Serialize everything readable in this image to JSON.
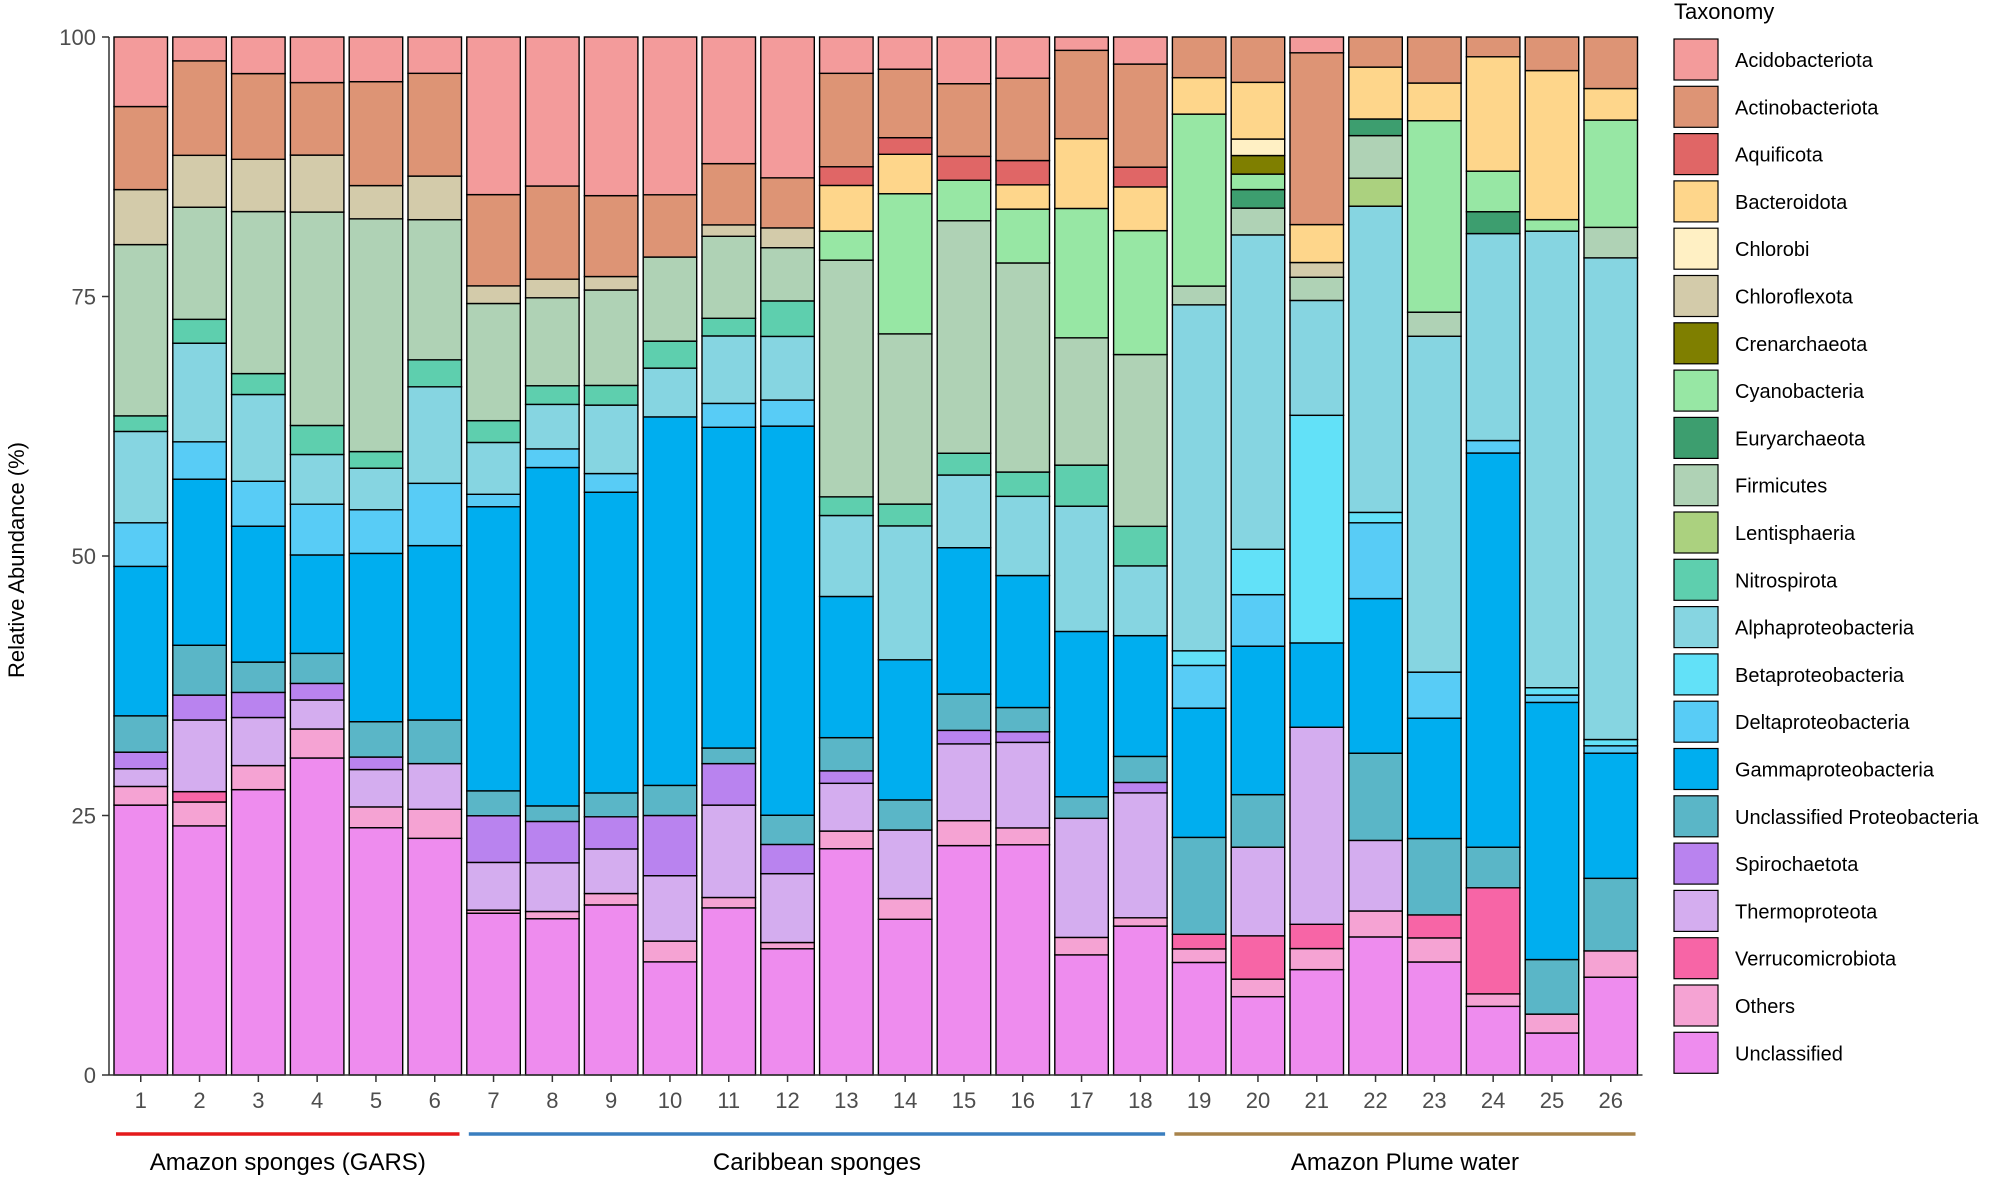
{
  "chart_data": {
    "type": "bar",
    "stacked": true,
    "ylabel": "Relative Abundance (%)",
    "ylim": [
      0,
      100
    ],
    "yticks": [
      0,
      25,
      50,
      75,
      100
    ],
    "categories": [
      "1",
      "2",
      "3",
      "4",
      "5",
      "6",
      "7",
      "8",
      "9",
      "10",
      "11",
      "12",
      "13",
      "14",
      "15",
      "16",
      "17",
      "18",
      "19",
      "20",
      "21",
      "22",
      "23",
      "24",
      "25",
      "26"
    ],
    "legend_title": "Taxonomy",
    "legend_position": "right",
    "groups": [
      {
        "label": "Amazon sponges (GARS)",
        "from": 1,
        "to": 6,
        "color": "#e41a1c"
      },
      {
        "label": "Caribbean sponges",
        "from": 7,
        "to": 18,
        "color": "#3a7ebf"
      },
      {
        "label": "Amazon Plume water",
        "from": 19,
        "to": 26,
        "color": "#a8834a"
      }
    ],
    "series": [
      {
        "name": "Unclassified",
        "color": "#ee8cee",
        "values": [
          26,
          24,
          27.3,
          30.6,
          23.8,
          22.8,
          15.6,
          15.1,
          16.4,
          10.9,
          16.1,
          12.1,
          21.8,
          15,
          22.1,
          21.8,
          11.7,
          14.3,
          10.8,
          7.6,
          10,
          13.3,
          10.8,
          6.6,
          4,
          9.3
        ]
      },
      {
        "name": "Others",
        "color": "#f5a3d3",
        "values": [
          1.8,
          2.3,
          2.3,
          2.8,
          2,
          2.8,
          0.3,
          0.7,
          1.1,
          2,
          1,
          0.6,
          1.7,
          2,
          2.4,
          1.6,
          1.7,
          0.8,
          1.3,
          1.7,
          2,
          2.5,
          2.3,
          1.2,
          1.8,
          2.5
        ]
      },
      {
        "name": "Verrucomicrobiota",
        "color": "#f765a6",
        "values": [
          0,
          1,
          0,
          0,
          0,
          0,
          0,
          0,
          0,
          0,
          0,
          0,
          0,
          0,
          0,
          0,
          0,
          0,
          1.4,
          4.2,
          2.3,
          0,
          2.2,
          10.2,
          0,
          0
        ]
      },
      {
        "name": "Thermoproteota",
        "color": "#d4adef",
        "values": [
          1.7,
          6.9,
          4.6,
          2.8,
          3.6,
          4.4,
          4.6,
          4.7,
          4.3,
          6.3,
          8.9,
          6.6,
          4.6,
          6.6,
          7.4,
          8.1,
          11.6,
          12,
          0,
          8.6,
          18.7,
          6.8,
          0,
          0,
          0,
          0
        ]
      },
      {
        "name": "Spirochaetota",
        "color": "#b983ef",
        "values": [
          1.6,
          2.4,
          2.4,
          1.6,
          1.2,
          0,
          4.5,
          4,
          3.1,
          5.8,
          4,
          2.8,
          1.2,
          0,
          1.3,
          1,
          0,
          1,
          0,
          0,
          0,
          0,
          0,
          0,
          0,
          0
        ]
      },
      {
        "name": "Unclassified Proteobacteria",
        "color": "#5ab6c7",
        "values": [
          3.5,
          4.8,
          2.9,
          2.9,
          3.4,
          4.2,
          2.4,
          1.5,
          2.3,
          2.9,
          1.5,
          2.8,
          3.2,
          2.9,
          3.5,
          2.3,
          2.1,
          2.5,
          9.3,
          5.1,
          0,
          8.4,
          7.3,
          3.9,
          5.2,
          6.9
        ]
      },
      {
        "name": "Gammaproteobacteria",
        "color": "#00aeef",
        "values": [
          14.4,
          16,
          13,
          9.5,
          16.2,
          16.8,
          27.4,
          32.7,
          29,
          35.5,
          30.9,
          37.3,
          13.6,
          13.5,
          14.1,
          12.5,
          16.1,
          11.6,
          12.4,
          14.4,
          8,
          14.9,
          11.5,
          37.9,
          24.5,
          11.9
        ]
      },
      {
        "name": "Deltaproteobacteria",
        "color": "#58ccf6",
        "values": [
          4.2,
          3.6,
          4.3,
          4.9,
          4.2,
          6,
          1.2,
          1.8,
          1.8,
          0,
          2.3,
          2.5,
          0,
          0,
          0,
          0,
          0,
          0,
          4.1,
          5,
          0,
          7.3,
          4.4,
          1.2,
          0.7,
          0.7
        ]
      },
      {
        "name": "Betaproteobacteria",
        "color": "#62e1f8",
        "values": [
          0,
          0,
          0,
          0,
          0,
          0,
          0,
          0,
          0,
          0,
          0,
          0,
          0,
          0,
          0,
          0,
          0,
          0,
          1.4,
          4.4,
          21.6,
          1,
          0,
          0,
          0.7,
          0.6
        ]
      },
      {
        "name": "Alphaproteobacteria",
        "color": "#86d5e1",
        "values": [
          8.8,
          9.5,
          8.3,
          4.8,
          4,
          9.3,
          5,
          4.3,
          6.6,
          4.7,
          6.5,
          6.1,
          7.8,
          12.9,
          7,
          7.5,
          12.2,
          6.7,
          33.2,
          30.5,
          10.9,
          29.5,
          32.1,
          19.9,
          43.5,
          45.8
        ]
      },
      {
        "name": "Nitrospirota",
        "color": "#5ecfae",
        "values": [
          1.5,
          2.3,
          2,
          2.8,
          1.6,
          2.6,
          2.1,
          1.8,
          1.9,
          2.6,
          1.7,
          3.4,
          1.8,
          2.1,
          2.1,
          2.3,
          4,
          3.8,
          0,
          0,
          0,
          0,
          0,
          0,
          0,
          0
        ]
      },
      {
        "name": "Lentisphaeria",
        "color": "#abd17f",
        "values": [
          0,
          0,
          0,
          0,
          0,
          0,
          0,
          0,
          0,
          0,
          0,
          0,
          0,
          0,
          0,
          0,
          0,
          0,
          0,
          0,
          0,
          2.7,
          0,
          0,
          0,
          0
        ]
      },
      {
        "name": "Firmicutes",
        "color": "#afd2b5",
        "values": [
          16.5,
          10.8,
          15.5,
          20.6,
          22.4,
          13.5,
          11.3,
          8.5,
          9.2,
          8.1,
          7.9,
          5.1,
          22.8,
          16.4,
          22.4,
          19.8,
          12.4,
          16.5,
          1.8,
          2.6,
          2.2,
          4.1,
          2.3,
          0,
          0,
          2.9
        ]
      },
      {
        "name": "Euryarchaeota",
        "color": "#3d9e6f",
        "values": [
          0,
          0,
          0,
          0,
          0,
          0,
          0,
          0,
          0,
          0,
          0,
          0,
          0,
          0,
          0,
          0,
          0,
          0,
          0,
          1.8,
          0,
          1.6,
          0,
          2.1,
          0,
          0
        ]
      },
      {
        "name": "Cyanobacteria",
        "color": "#97e7a4",
        "values": [
          0,
          0,
          0,
          0,
          0,
          0,
          0,
          0,
          0,
          0,
          0,
          0,
          2.8,
          13.5,
          3.9,
          5.1,
          12.6,
          11.9,
          16.5,
          1.5,
          0,
          0,
          18.3,
          3.9,
          1.1,
          10.2
        ]
      },
      {
        "name": "Crenarchaeota",
        "color": "#7f7f00",
        "values": [
          0,
          0,
          0,
          0,
          0,
          0,
          0,
          0,
          0,
          0,
          0,
          0,
          0,
          0,
          0,
          0,
          0,
          0,
          0,
          1.8,
          0,
          0,
          0,
          0,
          0,
          0
        ]
      },
      {
        "name": "Chloroflexota",
        "color": "#d3cbaa",
        "values": [
          5.3,
          5,
          5,
          5.5,
          3.2,
          4.2,
          1.7,
          1.8,
          1.3,
          0,
          1.1,
          1.9,
          0,
          0,
          0,
          0,
          0,
          0,
          0,
          0,
          1.4,
          0,
          0,
          0,
          0,
          0
        ]
      },
      {
        "name": "Chlorobi",
        "color": "#fff0c4",
        "values": [
          0,
          0,
          0,
          0,
          0,
          0,
          0,
          0,
          0,
          0,
          0,
          0,
          0,
          0,
          0,
          0,
          0,
          0,
          0,
          1.6,
          0,
          0,
          0,
          0,
          0,
          0
        ]
      },
      {
        "name": "Bacteroidota",
        "color": "#fed68b",
        "values": [
          0,
          0,
          0,
          0,
          0,
          0,
          0,
          0,
          0,
          0,
          0,
          0,
          4.4,
          3.8,
          0,
          2.3,
          6.8,
          4.2,
          3.5,
          5.5,
          3.6,
          5,
          3.6,
          11,
          14.2,
          3
        ]
      },
      {
        "name": "Aquificota",
        "color": "#e06666",
        "values": [
          0,
          0,
          0,
          0,
          0,
          0,
          0,
          0,
          0,
          0,
          0,
          0,
          1.8,
          1.6,
          2.3,
          2.3,
          0,
          1.9,
          0,
          0,
          0,
          0,
          0,
          0,
          0,
          0
        ]
      },
      {
        "name": "Actinobacteriota",
        "color": "#dd9475",
        "values": [
          8,
          9.1,
          8.2,
          7,
          10,
          9.9,
          8.8,
          9,
          7.8,
          6,
          5.9,
          4.8,
          9,
          6.6,
          7,
          7.8,
          8.6,
          9.9,
          3.9,
          4.4,
          16.3,
          2.9,
          4.4,
          1.9,
          3.2,
          4.9
        ]
      },
      {
        "name": "Acidobacteriota",
        "color": "#f39b9b",
        "values": [
          6.7,
          2.3,
          3.5,
          4.4,
          4.3,
          3.5,
          15.2,
          14.4,
          15.3,
          15.2,
          12.2,
          13.5,
          3.5,
          3.1,
          4.5,
          3.9,
          1.3,
          2.6,
          0,
          0,
          1.5,
          0,
          0,
          0,
          0,
          0
        ]
      }
    ]
  }
}
